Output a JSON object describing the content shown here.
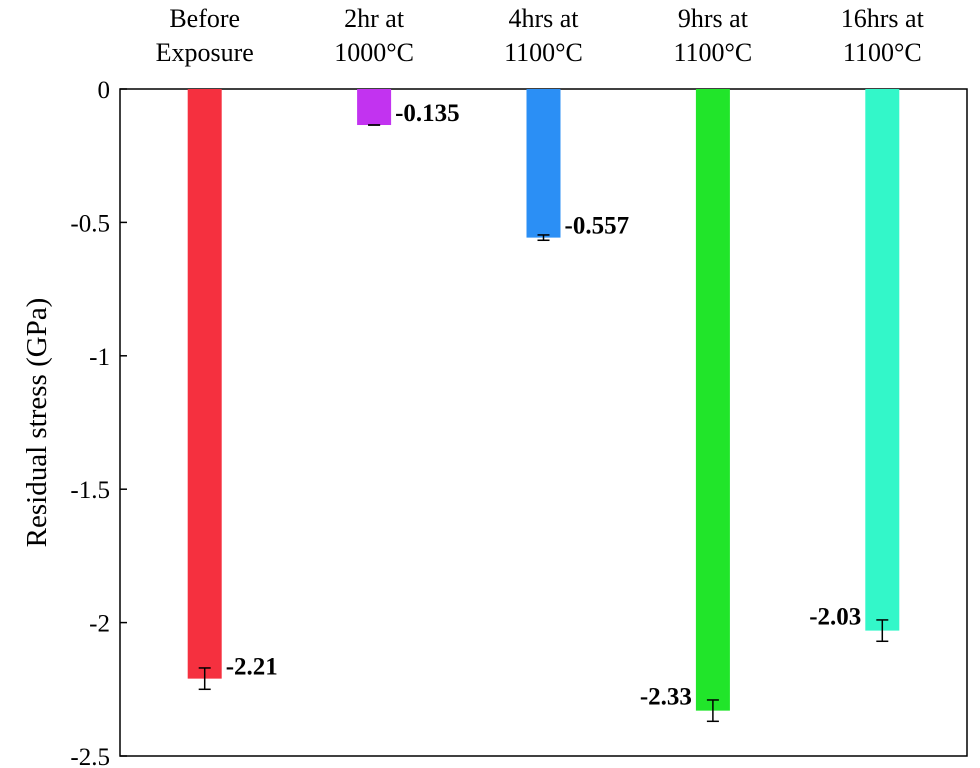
{
  "chart_data": {
    "type": "bar",
    "title": "",
    "xlabel": "",
    "ylabel": "Residual stress (GPa)",
    "ylim": [
      -2.5,
      0
    ],
    "yticks": [
      0,
      -0.5,
      -1,
      -1.5,
      -2,
      -2.5
    ],
    "ytick_labels": [
      "0",
      "-0.5",
      "-1",
      "-1.5",
      "-2",
      "-2.5"
    ],
    "x_axis_position": "top",
    "grid": false,
    "categories": [
      [
        "Before",
        "Exposure"
      ],
      [
        "2hr at",
        "1000°C"
      ],
      [
        "4hrs at",
        "1100°C"
      ],
      [
        "9hrs at",
        "1100°C"
      ],
      [
        "16hrs at",
        "1100°C"
      ]
    ],
    "values": [
      -2.21,
      -0.135,
      -0.557,
      -2.33,
      -2.03
    ],
    "errors": [
      0.04,
      0.0,
      0.01,
      0.04,
      0.04
    ],
    "data_labels": [
      "-2.21",
      "-0.135",
      "-0.557",
      "-2.33",
      "-2.03"
    ],
    "label_sides": [
      "right",
      "right",
      "right",
      "left",
      "left"
    ],
    "colors": [
      "#f5303f",
      "#c233f0",
      "#2b8ff5",
      "#21e52a",
      "#33f7c9"
    ]
  }
}
